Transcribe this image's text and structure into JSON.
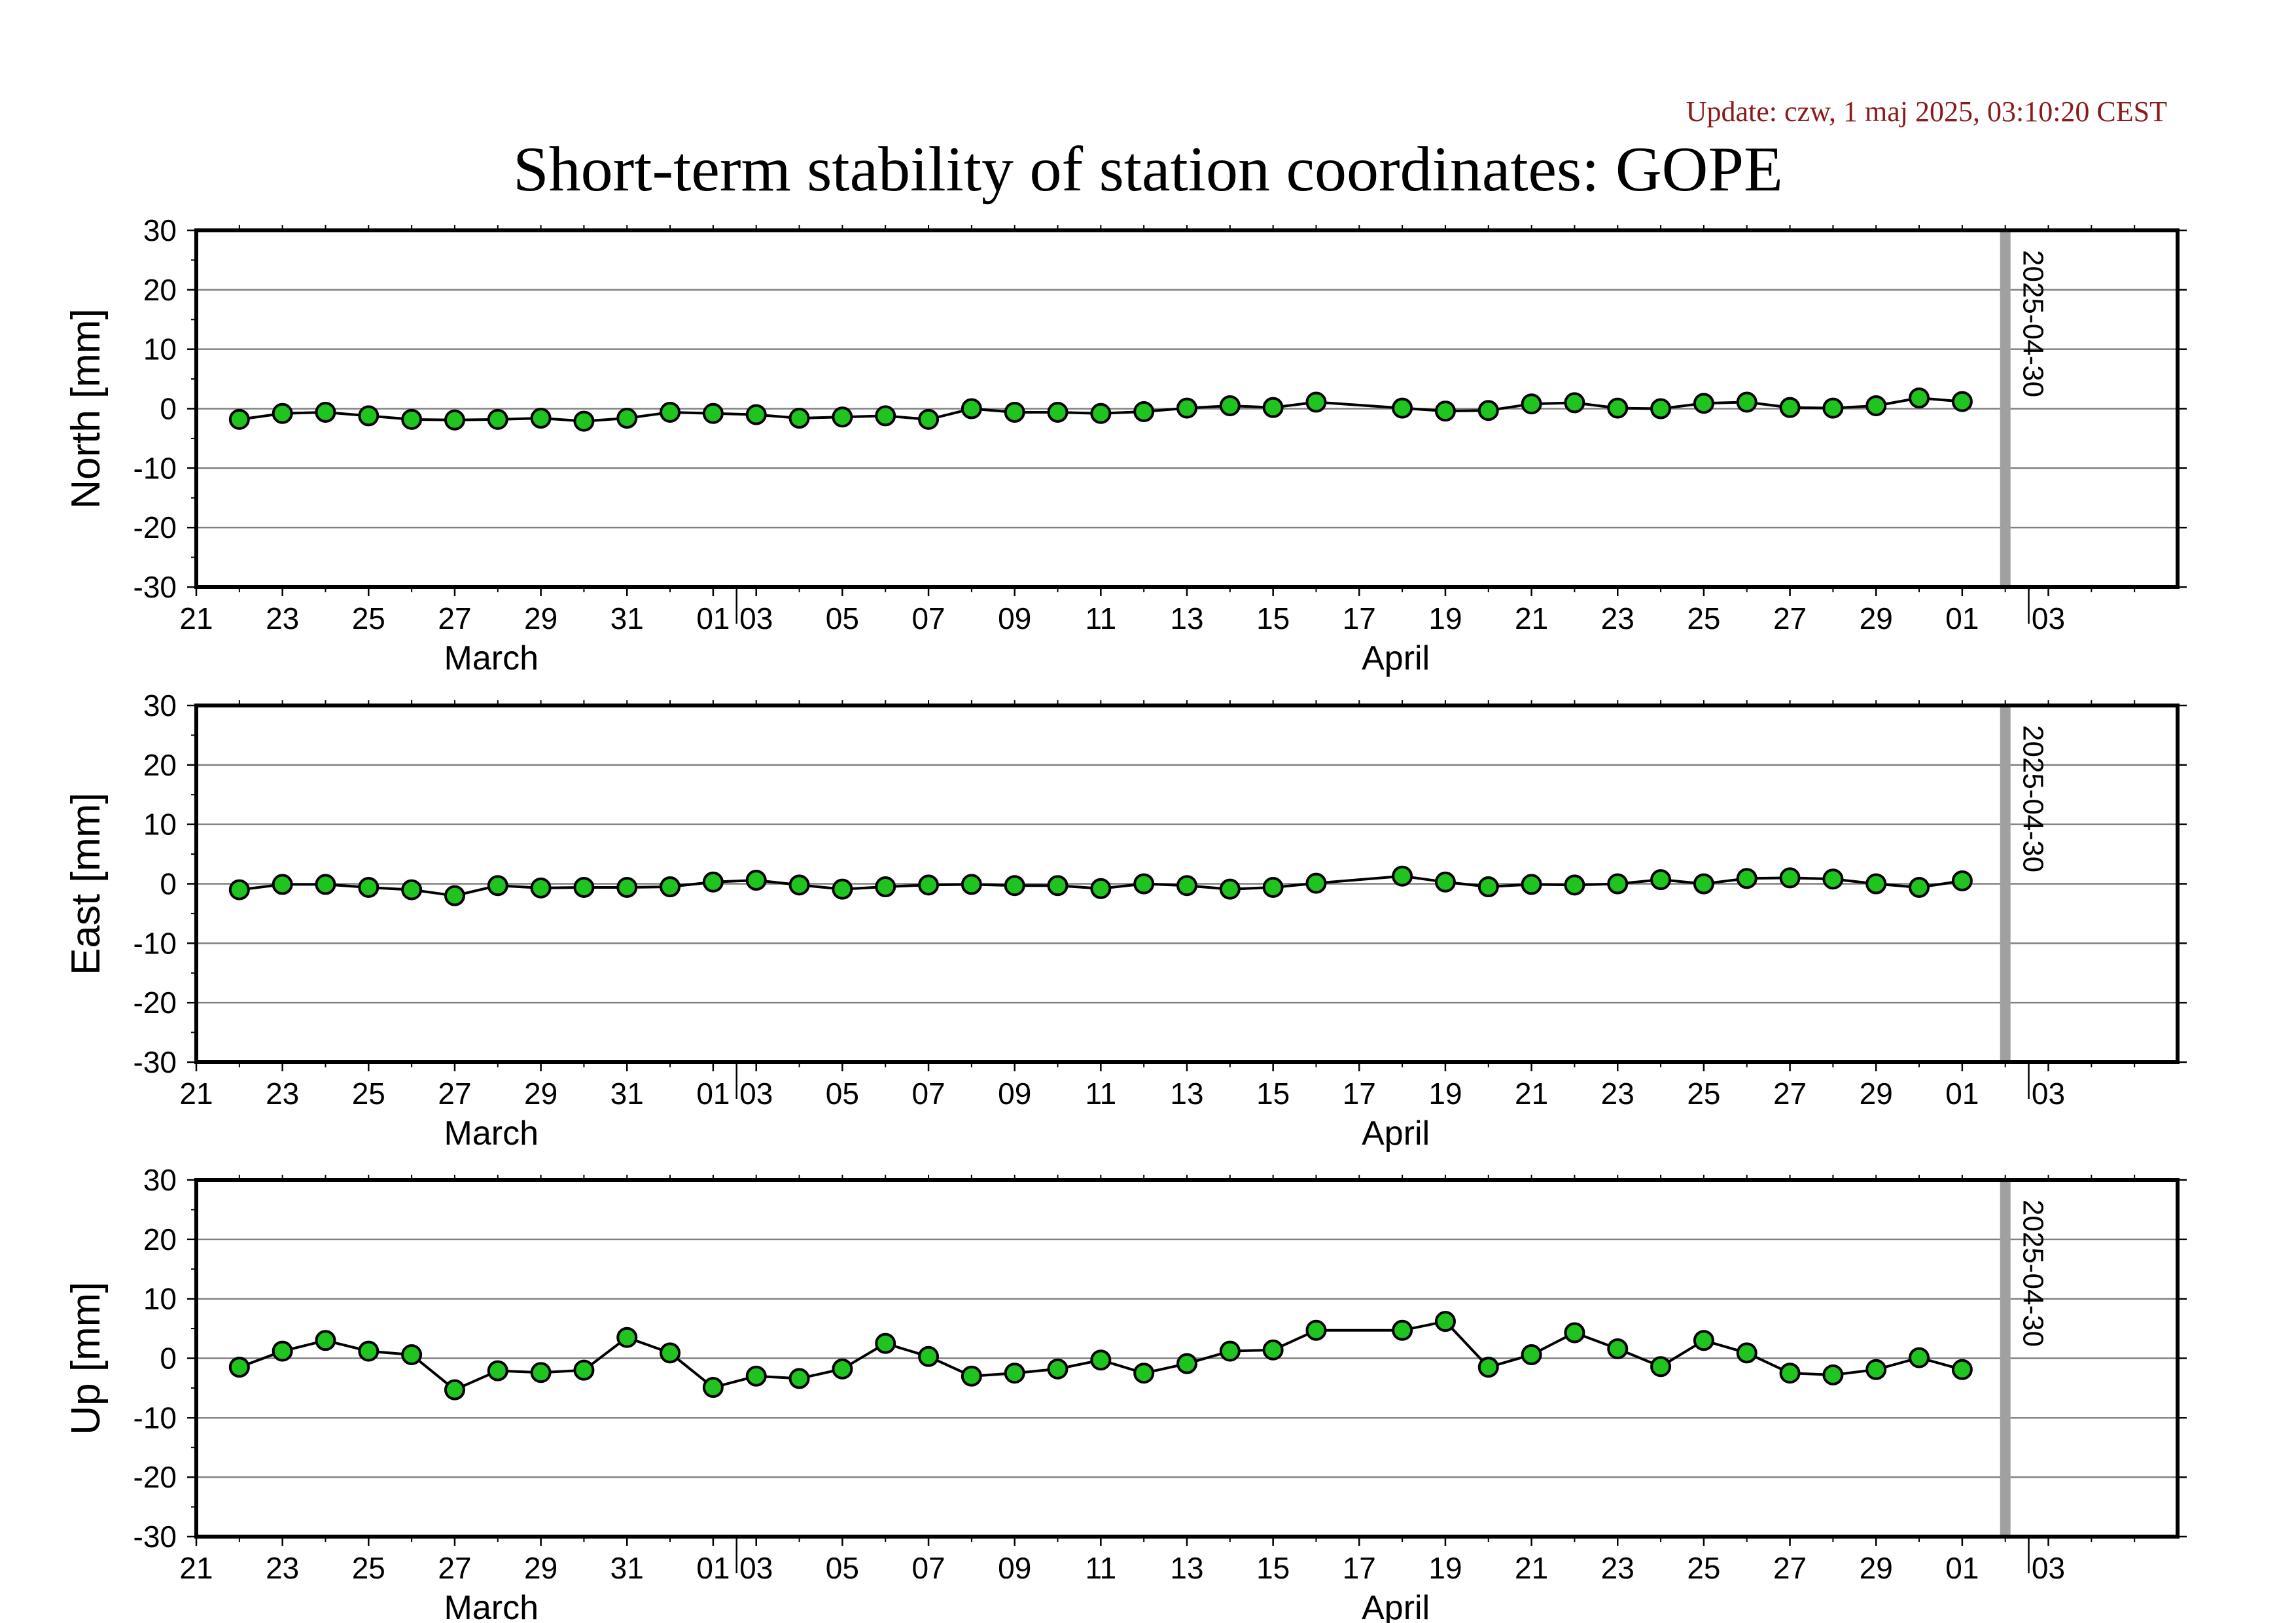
{
  "header": {
    "update": "Update: czw, 1 maj 2025, 03:10:20 CEST",
    "title": "Short-term stability of station coordinates: GOPE"
  },
  "colors": {
    "marker_fill": "#1fc41f",
    "marker_stroke": "#000000",
    "line": "#000000",
    "grid": "#808080",
    "marker_bar": "#a0a0a0"
  },
  "chart_data": {
    "type": "line",
    "x_axis": {
      "range": [
        "2025-03-19",
        "2025-05-04"
      ],
      "tick_labels": [
        "21",
        "23",
        "25",
        "27",
        "29",
        "31",
        "01",
        "03",
        "05",
        "07",
        "09",
        "11",
        "13",
        "15",
        "17",
        "19",
        "21",
        "23",
        "25",
        "27",
        "29",
        "01",
        "03"
      ],
      "month_labels": [
        "March",
        "April"
      ]
    },
    "y_range": [
      -30,
      30
    ],
    "y_ticks": [
      30,
      20,
      10,
      0,
      -10,
      -20,
      -30
    ],
    "marker_date": "2025-04-30",
    "marker_label": "2025-04-30",
    "dates": [
      "2025-03-20",
      "2025-03-21",
      "2025-03-22",
      "2025-03-23",
      "2025-03-24",
      "2025-03-25",
      "2025-03-26",
      "2025-03-27",
      "2025-03-28",
      "2025-03-29",
      "2025-03-30",
      "2025-03-31",
      "2025-04-01",
      "2025-04-02",
      "2025-04-03",
      "2025-04-04",
      "2025-04-05",
      "2025-04-06",
      "2025-04-07",
      "2025-04-08",
      "2025-04-09",
      "2025-04-10",
      "2025-04-11",
      "2025-04-12",
      "2025-04-13",
      "2025-04-14",
      "2025-04-16",
      "2025-04-17",
      "2025-04-18",
      "2025-04-19",
      "2025-04-20",
      "2025-04-21",
      "2025-04-22",
      "2025-04-23",
      "2025-04-24",
      "2025-04-25",
      "2025-04-26",
      "2025-04-27",
      "2025-04-28",
      "2025-04-29"
    ],
    "panels": [
      {
        "ylabel": "North [mm]",
        "values": [
          -1.8,
          -0.8,
          -0.6,
          -1.2,
          -1.8,
          -1.9,
          -1.8,
          -1.6,
          -2.1,
          -1.6,
          -0.6,
          -0.8,
          -1.0,
          -1.6,
          -1.4,
          -1.2,
          -1.8,
          0.0,
          -0.6,
          -0.6,
          -0.8,
          -0.5,
          0.1,
          0.5,
          0.2,
          1.1,
          0.1,
          -0.4,
          -0.3,
          0.8,
          1.0,
          0.1,
          0.0,
          0.9,
          1.1,
          0.2,
          0.1,
          0.5,
          1.8,
          1.2
        ]
      },
      {
        "ylabel": "East [mm]",
        "values": [
          -1.0,
          -0.1,
          -0.1,
          -0.6,
          -1.0,
          -2.0,
          -0.3,
          -0.7,
          -0.6,
          -0.6,
          -0.5,
          0.3,
          0.6,
          -0.2,
          -0.9,
          -0.5,
          -0.2,
          -0.1,
          -0.3,
          -0.3,
          -0.8,
          0.0,
          -0.3,
          -0.9,
          -0.6,
          0.1,
          1.3,
          0.3,
          -0.5,
          -0.1,
          -0.2,
          0.0,
          0.7,
          0.0,
          0.9,
          1.0,
          0.8,
          0.0,
          -0.6,
          0.5
        ]
      },
      {
        "ylabel": "Up [mm]",
        "values": [
          -1.5,
          1.2,
          3.0,
          1.2,
          0.6,
          -5.3,
          -2.1,
          -2.4,
          -2.0,
          3.5,
          0.9,
          -4.9,
          -3.0,
          -3.4,
          -1.8,
          2.5,
          0.3,
          -3.0,
          -2.5,
          -1.8,
          -0.3,
          -2.5,
          -0.9,
          1.2,
          1.4,
          4.7,
          4.7,
          6.2,
          -1.5,
          0.6,
          4.3,
          1.6,
          -1.4,
          3.0,
          0.9,
          -2.5,
          -2.8,
          -1.9,
          0.1,
          -1.9
        ]
      }
    ]
  }
}
